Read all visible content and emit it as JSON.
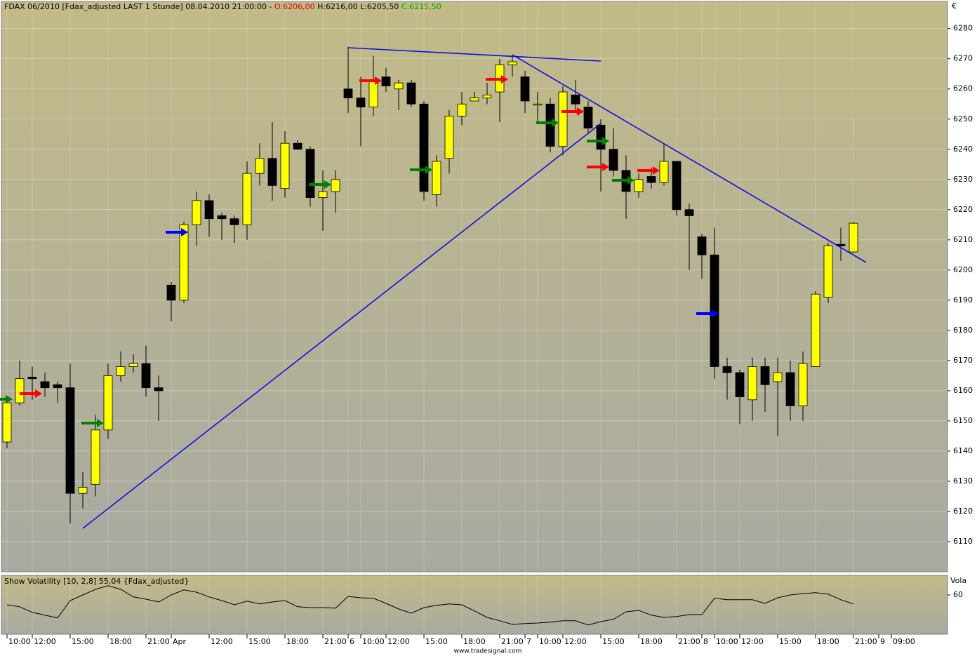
{
  "chart_data": [
    {
      "type": "candlestick",
      "title_parts": [
        {
          "text": "FDAX 06/2010 [Fdax_adjusted LAST 1 Stunde] 08.04.2010 21:00:00 - ",
          "color": "#000000"
        },
        {
          "text": "O:6206,00",
          "color": "#e00000"
        },
        {
          "text": " H:6216,00 L:6205,50 ",
          "color": "#000000"
        },
        {
          "text": "C:6215,50",
          "color": "#00a000"
        }
      ],
      "y_unit": "€",
      "footer": "www.tradesignal.com",
      "categories": [
        "10:00",
        null,
        "12:00",
        null,
        null,
        "15:00",
        null,
        null,
        "18:00",
        null,
        null,
        "21:00",
        null,
        "Apr",
        null,
        null,
        "12:00",
        null,
        null,
        "15:00",
        null,
        null,
        "18:00",
        null,
        null,
        "21:00",
        null,
        "6",
        "10:00",
        null,
        "12:00",
        null,
        null,
        "15:00",
        null,
        null,
        "18:00",
        null,
        null,
        "21:00",
        null,
        "7",
        "10:00",
        null,
        "12:00",
        null,
        null,
        "15:00",
        null,
        null,
        "18:00",
        null,
        null,
        "21:00",
        null,
        "8",
        "10:00",
        null,
        "12:00",
        null,
        null,
        "15:00",
        null,
        null,
        "18:00",
        null,
        null,
        "21:00"
      ],
      "x_extra_labels": [
        "9",
        "09:00"
      ],
      "up_color": "#ffff00",
      "down_color": "#000000",
      "open": [
        6143,
        6156,
        6164.5,
        6163,
        6162,
        6161,
        6126,
        6129,
        6147,
        6165,
        6168,
        6169,
        6161,
        6195,
        6190,
        6215,
        6223,
        6218,
        6217,
        6215,
        6232,
        6237,
        6227,
        6242,
        6240,
        6224,
        6226,
        6260,
        6257,
        6254,
        6264,
        6260,
        6262,
        6255,
        6225,
        6237,
        6251,
        6256,
        6257,
        6259,
        6268,
        6264,
        6255,
        6255,
        6241,
        6258,
        6254,
        6248,
        6240,
        6233,
        6226,
        6231,
        6229,
        6236,
        6220,
        6211,
        6205,
        6168,
        6166,
        6157,
        6168,
        6163,
        6166,
        6155,
        6168,
        6191,
        6208.5,
        6206
      ],
      "high": [
        6158,
        6170,
        6168,
        6166,
        6163,
        6169,
        6133,
        6152,
        6169,
        6173,
        6172,
        6175,
        6165,
        6196,
        6216,
        6226,
        6225,
        6219,
        6218,
        6236,
        6242,
        6249,
        6246,
        6243,
        6241,
        6233,
        6233,
        6274,
        6264,
        6271,
        6267,
        6263,
        6263,
        6256,
        6238,
        6253,
        6259,
        6259,
        6262,
        6270,
        6271,
        6266,
        6259,
        6257,
        6261,
        6263,
        6256,
        6250,
        6247,
        6238,
        6232,
        6234,
        6242,
        6236,
        6222,
        6212,
        6214,
        6171,
        6167,
        6171,
        6171,
        6171,
        6170,
        6173,
        6193,
        6209,
        6214,
        6216
      ],
      "low": [
        6141,
        6155,
        6157,
        6158,
        6156,
        6116,
        6121,
        6125,
        6144,
        6163,
        6166,
        6158,
        6150,
        6183,
        6189,
        6208,
        6211,
        6210,
        6209,
        6210,
        6228,
        6223,
        6224,
        6240,
        6221,
        6213,
        6219,
        6252,
        6241,
        6251,
        6259,
        6253,
        6254,
        6223,
        6221,
        6232,
        6248,
        6256,
        6255,
        6249,
        6264,
        6252,
        6249,
        6239,
        6238,
        6252,
        6245,
        6226,
        6231,
        6217,
        6224,
        6227,
        6228,
        6218,
        6200,
        6197,
        6164,
        6157,
        6149,
        6150,
        6153,
        6145,
        6150,
        6150,
        6168,
        6189,
        6203,
        6205.5
      ],
      "close": [
        6156,
        6164,
        6164,
        6161,
        6161,
        6126,
        6128,
        6147,
        6165,
        6168,
        6169,
        6161,
        6160,
        6190,
        6215,
        6223,
        6217,
        6217,
        6215,
        6232,
        6237,
        6228,
        6242,
        6240,
        6224,
        6226,
        6230,
        6257,
        6254,
        6263,
        6261,
        6262,
        6255,
        6226,
        6236,
        6251,
        6255,
        6257,
        6258,
        6268,
        6269,
        6256,
        6255,
        6241,
        6259,
        6255,
        6247,
        6240,
        6233,
        6226,
        6230,
        6229,
        6236,
        6220,
        6218,
        6205,
        6168,
        6166,
        6158,
        6168,
        6162,
        6166,
        6155,
        6169,
        6192,
        6208,
        6208,
        6215.5
      ],
      "ylim": [
        6100,
        6289
      ],
      "yticks": [
        6110,
        6120,
        6130,
        6140,
        6150,
        6160,
        6170,
        6180,
        6190,
        6200,
        6210,
        6220,
        6230,
        6240,
        6250,
        6260,
        6270,
        6280
      ],
      "grid": true
    },
    {
      "type": "line",
      "title": "Show Volatility [10, 2,8] 55,04 {Fdax_adjusted}",
      "y_label": "Vola",
      "color": "#000000",
      "values": [
        56.5,
        55.8,
        53.8,
        52.8,
        51.8,
        58,
        60,
        62,
        63.3,
        62,
        59.3,
        58.5,
        57.5,
        60,
        61.8,
        61,
        59.3,
        58,
        56.5,
        57.8,
        56.8,
        57.5,
        58,
        55.8,
        55.5,
        55.5,
        55.3,
        59.5,
        59,
        58.8,
        57,
        55,
        53.5,
        55.5,
        56.3,
        56.8,
        56.5,
        54.3,
        52,
        50.8,
        49.5,
        49.8,
        50,
        50.3,
        50.8,
        50.8,
        49.3,
        50.5,
        51.3,
        54,
        54.5,
        52.8,
        52,
        52.3,
        53,
        53,
        58.8,
        58.3,
        58.3,
        58.3,
        57,
        59,
        60,
        60.5,
        60.8,
        60.3,
        58.3,
        56.8
      ],
      "ylim": [
        46,
        66.5
      ],
      "yticks": [
        60
      ]
    }
  ]
}
